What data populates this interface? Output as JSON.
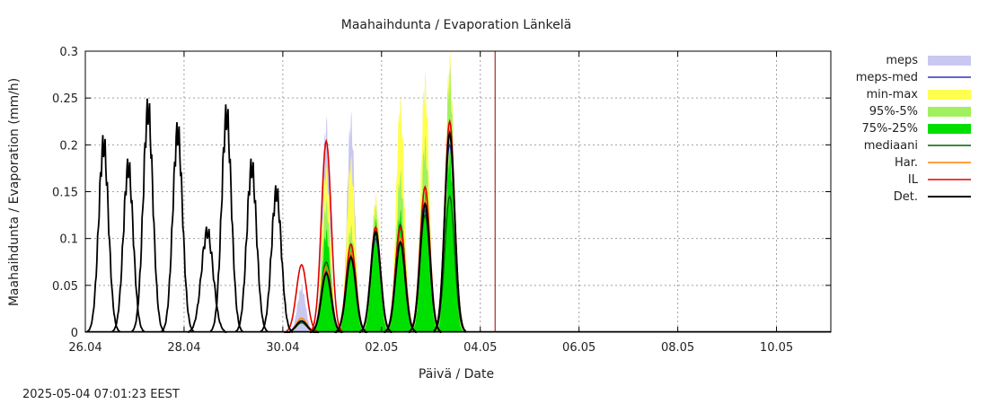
{
  "chart_data": {
    "type": "area",
    "title": "Maahaihdunta / Evaporation  Länkelä",
    "xlabel": "Päivä / Date",
    "ylabel": "Maahaihdunta / Evaporation (mm/h)",
    "ylim": [
      0,
      0.3
    ],
    "yticks": [
      "0",
      "0.05",
      "0.1",
      "0.15",
      "0.2",
      "0.25",
      "0.3"
    ],
    "xlim_days": [
      0,
      7.55
    ],
    "xticks": [
      {
        "label": "26.04",
        "day": 0
      },
      {
        "label": "28.04",
        "day": 1
      },
      {
        "label": "30.04",
        "day": 2
      },
      {
        "label": "02.05",
        "day": 3
      },
      {
        "label": "04.05",
        "day": 4
      },
      {
        "label": "06.05",
        "day": 5
      },
      {
        "label": "08.05",
        "day": 6
      },
      {
        "label": "10.05",
        "day": 7
      }
    ],
    "forecast_start_day": 4.15,
    "timestamp": "2025-05-04 07:01:23 EEST",
    "grid": true,
    "legend_position": "right-top",
    "colors": {
      "meps": "#c8c8f0",
      "meps_med": "#3030c0",
      "min_max": "#ffff50",
      "p95_5": "#a0f060",
      "p75_25": "#00e000",
      "mediaani": "#006000",
      "har": "#ff8000",
      "il": "#e00000",
      "det": "#000000",
      "forecast_line": "#a00000"
    },
    "legend": [
      {
        "label": "meps",
        "key": "meps",
        "kind": "box"
      },
      {
        "label": "meps-med",
        "key": "meps_med",
        "kind": "line"
      },
      {
        "label": "min-max",
        "key": "min_max",
        "kind": "box"
      },
      {
        "label": "95%-5%",
        "key": "p95_5",
        "kind": "box"
      },
      {
        "label": "75%-25%",
        "key": "p75_25",
        "kind": "box"
      },
      {
        "label": "mediaani",
        "key": "mediaani",
        "kind": "line"
      },
      {
        "label": "Har.",
        "key": "har",
        "kind": "line"
      },
      {
        "label": "IL",
        "key": "il",
        "kind": "line"
      },
      {
        "label": "Det.",
        "key": "det",
        "kind": "line"
      }
    ],
    "observed_peaks": [
      {
        "center": 0.185,
        "peak": 0.2,
        "width": 0.075
      },
      {
        "center": 0.435,
        "peak": 0.176,
        "width": 0.075
      },
      {
        "center": 0.635,
        "peak": 0.237,
        "width": 0.075
      },
      {
        "center": 0.935,
        "peak": 0.213,
        "width": 0.075
      },
      {
        "center": 1.235,
        "peak": 0.107,
        "width": 0.09
      },
      {
        "center": 1.43,
        "peak": 0.231,
        "width": 0.075
      },
      {
        "center": 1.685,
        "peak": 0.176,
        "width": 0.075
      },
      {
        "center": 1.935,
        "peak": 0.149,
        "width": 0.075
      }
    ],
    "forecast_days": [
      {
        "center": 2.19,
        "det": 0.012,
        "il": 0.072,
        "har": 0.015,
        "mediaani": 0.01,
        "meps_max": 0.047,
        "meps_med": 0.012,
        "minmax_max": 0.0,
        "p95": 0.0,
        "p75": 0.0,
        "width": 0.08
      },
      {
        "center": 2.44,
        "det": 0.063,
        "il": 0.204,
        "har": 0.07,
        "mediaani": 0.075,
        "meps_max": 0.22,
        "meps_med": 0.065,
        "minmax_max": 0.17,
        "p95": 0.135,
        "p75": 0.105,
        "width": 0.075
      },
      {
        "center": 2.69,
        "det": 0.08,
        "il": 0.094,
        "har": 0.085,
        "mediaani": 0.082,
        "meps_max": 0.225,
        "meps_med": 0.08,
        "minmax_max": 0.18,
        "p95": 0.11,
        "p75": 0.09,
        "width": 0.075
      },
      {
        "center": 2.94,
        "det": 0.107,
        "il": 0.112,
        "har": 0.108,
        "mediaani": 0.105,
        "meps_max": 0.14,
        "meps_med": 0.1,
        "minmax_max": 0.14,
        "p95": 0.13,
        "p75": 0.115,
        "width": 0.075
      },
      {
        "center": 3.19,
        "det": 0.096,
        "il": 0.112,
        "har": 0.1,
        "mediaani": 0.115,
        "meps_max": 0.24,
        "meps_med": 0.1,
        "minmax_max": 0.24,
        "p95": 0.165,
        "p75": 0.125,
        "width": 0.075
      },
      {
        "center": 3.44,
        "det": 0.137,
        "il": 0.155,
        "har": 0.14,
        "mediaani": 0.125,
        "meps_max": 0.265,
        "meps_med": 0.13,
        "minmax_max": 0.265,
        "p95": 0.2,
        "p75": 0.145,
        "width": 0.075
      },
      {
        "center": 3.69,
        "det": 0.212,
        "il": 0.225,
        "har": 0.215,
        "mediaani": 0.145,
        "meps_max": 0.285,
        "meps_med": 0.2,
        "minmax_max": 0.285,
        "p95": 0.27,
        "p75": 0.185,
        "width": 0.075
      }
    ]
  }
}
